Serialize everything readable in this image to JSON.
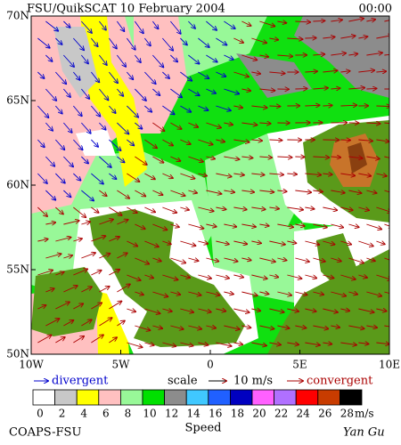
{
  "header": {
    "title": "FSU/QuikSCAT 10 February 2004",
    "time": "00:00"
  },
  "map": {
    "lat_ticks": [
      {
        "value": 70,
        "label": "70N"
      },
      {
        "value": 65,
        "label": "65N"
      },
      {
        "value": 60,
        "label": "60N"
      },
      {
        "value": 55,
        "label": "55N"
      },
      {
        "value": 50,
        "label": "50N"
      }
    ],
    "lon_ticks": [
      {
        "value": -10,
        "label": "10W"
      },
      {
        "value": -5,
        "label": "5W"
      },
      0,
      {
        "value": 5,
        "label": "5E"
      },
      {
        "value": 10,
        "label": "10E"
      }
    ]
  },
  "legend": {
    "divergent": "divergent",
    "scale": "scale",
    "scale_value": "10 m/s",
    "convergent": "convergent",
    "divergent_color": "#0000cc",
    "convergent_color": "#aa0000"
  },
  "colorbar": {
    "title": "Speed",
    "unit": "m/s",
    "ticks": [
      0,
      2,
      4,
      6,
      8,
      10,
      12,
      14,
      16,
      18,
      20,
      22,
      24,
      26,
      28
    ],
    "colors": [
      "#ffffff",
      "#c8c8c8",
      "#ffff00",
      "#ffc0c0",
      "#98f898",
      "#00e000",
      "#8c8c8c",
      "#40c8ff",
      "#2060ff",
      "#0000c0",
      "#ff60ff",
      "#b070ff",
      "#ff0000",
      "#c83c00",
      "#000000"
    ]
  },
  "footer": {
    "left": "COAPS-FSU",
    "right": "Yan Gu"
  }
}
